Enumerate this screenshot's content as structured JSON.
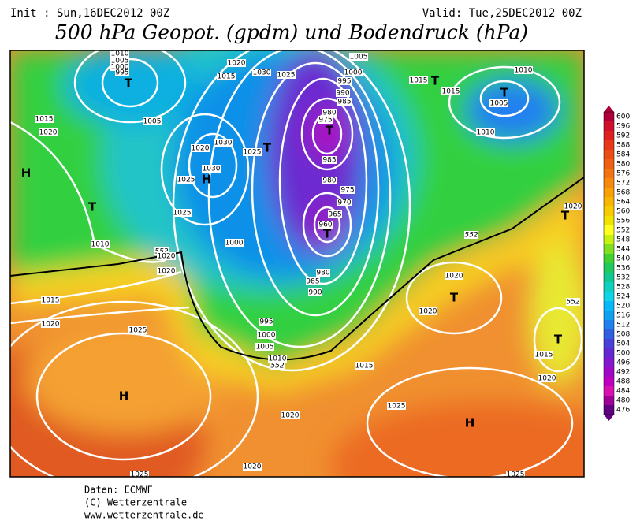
{
  "header": {
    "init": "Init : Sun,16DEC2012 00Z",
    "valid": "Valid: Tue,25DEC2012 00Z",
    "title": "500 hPa Geopot. (gpdm) und Bodendruck (hPa)"
  },
  "colorbar": {
    "levels": [
      600,
      596,
      592,
      588,
      584,
      580,
      576,
      572,
      568,
      564,
      560,
      556,
      552,
      548,
      544,
      540,
      536,
      532,
      528,
      524,
      520,
      516,
      512,
      508,
      504,
      500,
      496,
      492,
      488,
      484,
      480,
      476
    ],
    "colors": [
      "#b0003c",
      "#d0102a",
      "#e02020",
      "#e8381c",
      "#ec4c18",
      "#ef6014",
      "#f27412",
      "#f58a0c",
      "#f8a006",
      "#f8b600",
      "#f6cc00",
      "#f2e200",
      "#ffff20",
      "#c8f010",
      "#80e020",
      "#40d030",
      "#20c860",
      "#10c890",
      "#10d0c0",
      "#10d4e8",
      "#08b8f8",
      "#10a0f0",
      "#2080f0",
      "#3060e0",
      "#4840d8",
      "#6428d0",
      "#8418d0",
      "#a008c8",
      "#c000c0",
      "#d810b0",
      "#a00098",
      "#600080"
    ]
  },
  "map_labels": [
    "1010",
    "1005",
    "1000",
    "995",
    "T",
    "1020",
    "1015",
    "1030",
    "1025",
    "1005",
    "1000",
    "995",
    "990",
    "985",
    "980",
    "975",
    "T",
    "1015",
    "T",
    "1015",
    "1010",
    "T",
    "1005",
    "1010",
    "1015",
    "1020",
    "1005",
    "1020",
    "1030",
    "1025",
    "T",
    "1030",
    "1025",
    "H",
    "H",
    "T",
    "1025",
    "1010",
    "552",
    "1020",
    "1020",
    "1000",
    "985",
    "980",
    "975",
    "970",
    "965",
    "960",
    "T",
    "980",
    "985",
    "990",
    "1015",
    "1020",
    "1025",
    "995",
    "1000",
    "1005",
    "1010",
    "552",
    "H",
    "1015",
    "1020",
    "1025",
    "1025",
    "1020",
    "1025",
    "H",
    "T",
    "1020",
    "1020",
    "552",
    "T",
    "1020",
    "552",
    "T",
    "1015",
    "1020"
  ],
  "footer": [
    "Daten: ECMWF",
    "(C) Wetterzentrale",
    "www.wetterzentrale.de"
  ]
}
